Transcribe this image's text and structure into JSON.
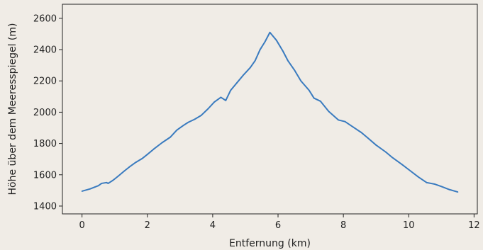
{
  "chart_data": {
    "type": "line",
    "title": "",
    "xlabel": "Entfernung (km)",
    "ylabel": "Höhe über dem Meeresspiegel (m)",
    "xlim": [
      -0.6,
      12.1
    ],
    "ylim": [
      1350,
      2690
    ],
    "xticks": [
      0,
      2,
      4,
      6,
      8,
      10,
      12
    ],
    "yticks": [
      1400,
      1600,
      1800,
      2000,
      2200,
      2400,
      2600
    ],
    "grid": false,
    "legend": false,
    "colors": {
      "background": "#f0ece6",
      "line": "#3a7bbf",
      "axes": "#222222"
    },
    "series": [
      {
        "x": [
          0,
          0.25,
          0.5,
          0.6,
          0.75,
          0.8,
          0.95,
          1.1,
          1.3,
          1.45,
          1.65,
          1.85,
          2.0,
          2.2,
          2.45,
          2.7,
          2.9,
          3.1,
          3.25,
          3.45,
          3.65,
          3.85,
          4.05,
          4.25,
          4.4,
          4.55,
          4.75,
          4.95,
          5.15,
          5.3,
          5.45,
          5.6,
          5.75,
          5.95,
          6.15,
          6.3,
          6.5,
          6.7,
          6.95,
          7.1,
          7.3,
          7.55,
          7.85,
          8.05,
          8.3,
          8.55,
          8.75,
          9.0,
          9.3,
          9.5,
          9.8,
          10.05,
          10.3,
          10.55,
          10.8,
          11.0,
          11.25,
          11.5
        ],
        "y": [
          1495,
          1510,
          1530,
          1545,
          1550,
          1545,
          1565,
          1590,
          1625,
          1650,
          1680,
          1705,
          1730,
          1765,
          1805,
          1840,
          1885,
          1915,
          1935,
          1955,
          1980,
          2020,
          2065,
          2095,
          2075,
          2140,
          2190,
          2240,
          2285,
          2330,
          2400,
          2450,
          2510,
          2460,
          2390,
          2330,
          2270,
          2200,
          2140,
          2090,
          2070,
          2005,
          1950,
          1940,
          1905,
          1870,
          1835,
          1790,
          1745,
          1710,
          1665,
          1625,
          1585,
          1550,
          1540,
          1525,
          1505,
          1490
        ]
      }
    ]
  }
}
